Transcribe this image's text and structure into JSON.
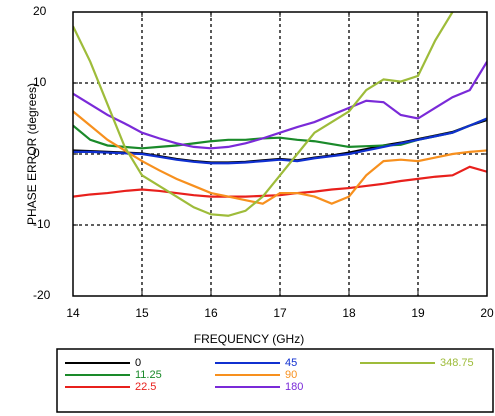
{
  "chart_data": {
    "type": "line",
    "xlabel": "FREQUENCY (GHz)",
    "ylabel": "PHASE ERROR (degrees)",
    "x": [
      14,
      14.25,
      14.5,
      14.75,
      15,
      15.25,
      15.5,
      15.75,
      16,
      16.25,
      16.5,
      16.75,
      17,
      17.25,
      17.5,
      17.75,
      18,
      18.25,
      18.5,
      18.75,
      19,
      19.25,
      19.5,
      19.75,
      20
    ],
    "xlim": [
      14,
      20
    ],
    "xticks": [
      14,
      15,
      16,
      17,
      18,
      19,
      20
    ],
    "ylim": [
      -20,
      20
    ],
    "yticks": [
      -20,
      -10,
      0,
      10,
      20
    ],
    "grid": true,
    "series": [
      {
        "name": "0",
        "color": "#000000",
        "values": [
          0.5,
          0.4,
          0.3,
          0.2,
          0.1,
          -0.3,
          -0.7,
          -1,
          -1.2,
          -1.2,
          -1.1,
          -0.9,
          -0.7,
          -0.9,
          -0.5,
          -0.2,
          0.2,
          0.7,
          1.2,
          1.6,
          2.1,
          2.6,
          3.1,
          4,
          4.8
        ]
      },
      {
        "name": "11.25",
        "color": "#1a8a2a",
        "values": [
          4,
          2,
          1.2,
          1,
          0.8,
          1,
          1.2,
          1.5,
          1.8,
          2,
          2,
          2.2,
          2.3,
          2,
          1.8,
          1.4,
          1,
          1.1,
          1.2,
          1.3,
          2,
          2.5,
          3,
          4,
          5
        ]
      },
      {
        "name": "22.5",
        "color": "#e8201c",
        "values": [
          -6,
          -5.7,
          -5.5,
          -5.2,
          -5,
          -5.2,
          -5.5,
          -5.8,
          -6,
          -6,
          -6,
          -5.9,
          -5.8,
          -5.5,
          -5.3,
          -5,
          -4.8,
          -4.5,
          -4.2,
          -3.8,
          -3.5,
          -3.2,
          -3,
          -1.8,
          -2.5
        ]
      },
      {
        "name": "45",
        "color": "#1030d0",
        "values": [
          0.3,
          0.3,
          0.2,
          0.1,
          0,
          -0.4,
          -0.8,
          -1.1,
          -1.3,
          -1.3,
          -1.2,
          -1,
          -0.8,
          -1,
          -0.6,
          -0.3,
          0,
          0.5,
          1,
          1.5,
          2,
          2.5,
          3,
          4,
          5
        ]
      },
      {
        "name": "90",
        "color": "#f7901e",
        "values": [
          6,
          4,
          2,
          0.5,
          -1,
          -2.3,
          -3.5,
          -4.5,
          -5.5,
          -6,
          -6.5,
          -7,
          -5.5,
          -5.5,
          -6,
          -7,
          -6,
          -3,
          -1,
          -0.8,
          -1,
          -0.5,
          0,
          0.3,
          0.5
        ]
      },
      {
        "name": "180",
        "color": "#7a2ad8",
        "values": [
          8.5,
          7,
          5.5,
          4.3,
          3,
          2.2,
          1.5,
          1,
          0.8,
          1,
          1.5,
          2.2,
          3,
          3.8,
          4.5,
          5.5,
          6.5,
          7.5,
          7.3,
          5.5,
          5,
          6.5,
          8,
          9,
          13
        ]
      },
      {
        "name": "348.75",
        "color": "#9ebc3a",
        "values": [
          18,
          13,
          7,
          1,
          -3,
          -4.5,
          -6,
          -7.5,
          -8.5,
          -8.7,
          -8,
          -6,
          -3,
          0,
          3,
          4.5,
          6,
          9,
          10.5,
          10.2,
          11,
          16,
          20,
          null,
          null
        ]
      }
    ]
  }
}
